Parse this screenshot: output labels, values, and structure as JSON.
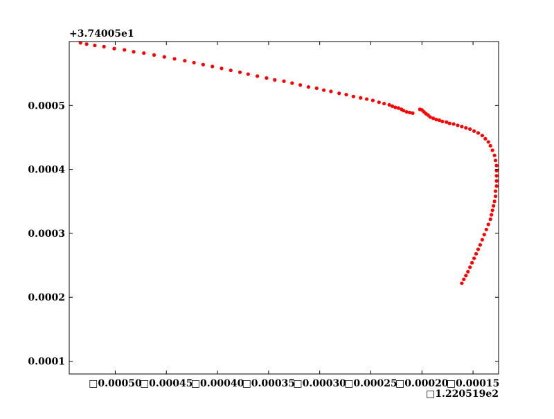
{
  "chart_data": {
    "type": "scatter",
    "title": "",
    "xlabel": "",
    "ylabel": "",
    "x_offset_label": "□1.220519e2",
    "y_offset_label": "+3.74005e1",
    "xlim": [
      -0.000545,
      -0.000125
    ],
    "ylim": [
      8e-05,
      0.0006
    ],
    "x_tick_values": [
      -0.0005,
      -0.00045,
      -0.0004,
      -0.00035,
      -0.0003,
      -0.00025,
      -0.0002,
      -0.00015
    ],
    "x_tick_labels": [
      "□0.00050",
      "□0.00045",
      "□0.00040",
      "□0.00035",
      "□0.00030",
      "□0.00025",
      "□0.00020",
      "□0.00015"
    ],
    "y_tick_values": [
      0.0001,
      0.0002,
      0.0003,
      0.0004,
      0.0005
    ],
    "y_tick_labels": [
      "0.0001",
      "0.0002",
      "0.0003",
      "0.0004",
      "0.0005"
    ],
    "grid": false,
    "marker_color": "#ff0000",
    "series": [
      {
        "points": [
          [
            -0.000534,
            0.000598
          ],
          [
            -0.000528,
            0.000596
          ],
          [
            -0.00052,
            0.000594
          ],
          [
            -0.000511,
            0.000592
          ],
          [
            -0.000501,
            0.000589
          ],
          [
            -0.000491,
            0.000587
          ],
          [
            -0.000482,
            0.000584
          ],
          [
            -0.000472,
            0.000582
          ],
          [
            -0.000462,
            0.000579
          ],
          [
            -0.000452,
            0.000576
          ],
          [
            -0.000442,
            0.000573
          ],
          [
            -0.000432,
            0.00057
          ],
          [
            -0.000423,
            0.000567
          ],
          [
            -0.000414,
            0.000564
          ],
          [
            -0.000405,
            0.000561
          ],
          [
            -0.000396,
            0.000558
          ],
          [
            -0.000387,
            0.000555
          ],
          [
            -0.000378,
            0.000552
          ],
          [
            -0.00037,
            0.000549
          ],
          [
            -0.000361,
            0.000546
          ],
          [
            -0.000352,
            0.000543
          ],
          [
            -0.000344,
            0.00054
          ],
          [
            -0.000335,
            0.000538
          ],
          [
            -0.000327,
            0.000535
          ],
          [
            -0.000319,
            0.000532
          ],
          [
            -0.000311,
            0.000529
          ],
          [
            -0.000303,
            0.000527
          ],
          [
            -0.000296,
            0.000524
          ],
          [
            -0.000289,
            0.000522
          ],
          [
            -0.000281,
            0.000519
          ],
          [
            -0.000274,
            0.000517
          ],
          [
            -0.000267,
            0.000514
          ],
          [
            -0.00026,
            0.000512
          ],
          [
            -0.000254,
            0.00051
          ],
          [
            -0.000248,
            0.000508
          ],
          [
            -0.000242,
            0.000505
          ],
          [
            -0.000237,
            0.000503
          ],
          [
            -0.000232,
            0.000501
          ],
          [
            -0.000229,
            0.000499
          ],
          [
            -0.000226,
            0.000497
          ],
          [
            -0.000223,
            0.000496
          ],
          [
            -0.00022,
            0.000494
          ],
          [
            -0.000218,
            0.000492
          ],
          [
            -0.000215,
            0.00049
          ],
          [
            -0.000212,
            0.000489
          ],
          [
            -0.000209,
            0.000488
          ],
          [
            -0.000202,
            0.000494
          ],
          [
            -0.0002,
            0.000493
          ],
          [
            -0.000198,
            0.00049
          ],
          [
            -0.000196,
            0.000487
          ],
          [
            -0.000194,
            0.000485
          ],
          [
            -0.000192,
            0.000482
          ],
          [
            -0.000189,
            0.00048
          ],
          [
            -0.000186,
            0.000478
          ],
          [
            -0.000183,
            0.000477
          ],
          [
            -0.00018,
            0.000475
          ],
          [
            -0.000176,
            0.000474
          ],
          [
            -0.000173,
            0.000472
          ],
          [
            -0.000169,
            0.000471
          ],
          [
            -0.000165,
            0.000469
          ],
          [
            -0.000161,
            0.000467
          ],
          [
            -0.000157,
            0.000465
          ],
          [
            -0.000153,
            0.000463
          ],
          [
            -0.000149,
            0.00046
          ],
          [
            -0.000145,
            0.000457
          ],
          [
            -0.000141,
            0.000453
          ],
          [
            -0.000138,
            0.000448
          ],
          [
            -0.000135,
            0.000443
          ],
          [
            -0.000133,
            0.000437
          ],
          [
            -0.000131,
            0.00043
          ],
          [
            -0.000129,
            0.000422
          ],
          [
            -0.000128,
            0.000414
          ],
          [
            -0.000127,
            0.000406
          ],
          [
            -0.000127,
            0.000398
          ],
          [
            -0.000127,
            0.00039
          ],
          [
            -0.000127,
            0.000382
          ],
          [
            -0.000127,
            0.000374
          ],
          [
            -0.000128,
            0.000366
          ],
          [
            -0.000128,
            0.000358
          ],
          [
            -0.000129,
            0.00035
          ],
          [
            -0.00013,
            0.000343
          ],
          [
            -0.000131,
            0.000336
          ],
          [
            -0.000132,
            0.000329
          ],
          [
            -0.000133,
            0.000322
          ],
          [
            -0.000135,
            0.000314
          ],
          [
            -0.000137,
            0.000306
          ],
          [
            -0.000139,
            0.000298
          ],
          [
            -0.000141,
            0.00029
          ],
          [
            -0.000143,
            0.000282
          ],
          [
            -0.000145,
            0.000275
          ],
          [
            -0.000147,
            0.000268
          ],
          [
            -0.000149,
            0.000261
          ],
          [
            -0.000151,
            0.000254
          ],
          [
            -0.000153,
            0.000247
          ],
          [
            -0.000155,
            0.00024
          ],
          [
            -0.000157,
            0.000234
          ],
          [
            -0.000159,
            0.000228
          ],
          [
            -0.000161,
            0.000222
          ]
        ]
      }
    ]
  }
}
